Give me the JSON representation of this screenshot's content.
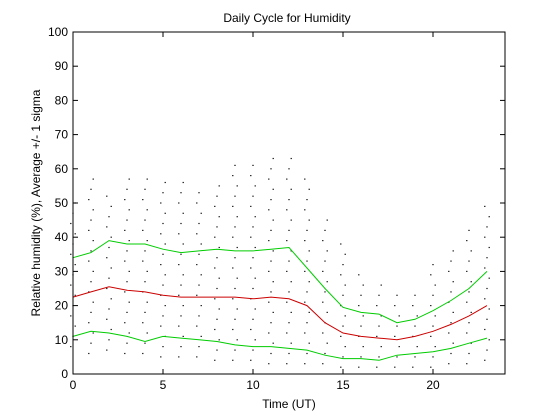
{
  "chart_data": {
    "type": "line",
    "title": "Daily Cycle for Humidity",
    "xlabel": "Time (UT)",
    "ylabel": "Relative humidity (%), Average +/- 1 sigma",
    "xlim": [
      0,
      24
    ],
    "ylim": [
      0,
      100
    ],
    "xticks": [
      0,
      5,
      10,
      15,
      20
    ],
    "yticks": [
      0,
      10,
      20,
      30,
      40,
      50,
      60,
      70,
      80,
      90,
      100
    ],
    "grid": false,
    "colors": {
      "average": "#cc0000",
      "sigma": "#00cc00",
      "points": "#000000",
      "axes": "#000000"
    },
    "x": [
      0,
      1,
      2,
      3,
      4,
      5,
      6,
      7,
      8,
      9,
      10,
      11,
      12,
      13,
      14,
      15,
      16,
      17,
      18,
      19,
      20,
      21,
      22,
      23
    ],
    "series": [
      {
        "role": "average",
        "values": [
          22.5,
          24,
          25.5,
          24.5,
          24,
          23,
          22.5,
          22.5,
          22.5,
          22.5,
          22,
          22.5,
          22,
          20,
          15,
          12,
          11,
          10.5,
          10,
          11,
          12.5,
          14.5,
          17,
          20
        ]
      },
      {
        "role": "upper",
        "values": [
          34,
          35.5,
          39,
          38,
          38,
          36.5,
          35.5,
          36,
          36.5,
          36,
          36,
          36.5,
          37,
          31,
          25,
          19.5,
          18,
          17.5,
          15,
          16,
          18.5,
          21.5,
          25,
          30
        ]
      },
      {
        "role": "lower",
        "values": [
          11,
          12.5,
          12,
          11,
          9.5,
          11,
          10.5,
          10,
          9.5,
          8.5,
          8,
          8,
          7.5,
          7,
          5.5,
          4.5,
          4.5,
          4,
          5.5,
          6,
          6.5,
          7.5,
          9,
          10.5
        ]
      }
    ],
    "scatter_ranges": [
      {
        "x": 0,
        "min": 8,
        "max": 50,
        "step": 3
      },
      {
        "x": 1,
        "min": 6,
        "max": 57,
        "step": 3
      },
      {
        "x": 2,
        "min": 7,
        "max": 53,
        "step": 3
      },
      {
        "x": 3,
        "min": 6,
        "max": 57,
        "step": 3
      },
      {
        "x": 4,
        "min": 6,
        "max": 58,
        "step": 3
      },
      {
        "x": 5,
        "min": 5,
        "max": 56,
        "step": 3
      },
      {
        "x": 6,
        "min": 5,
        "max": 57,
        "step": 3
      },
      {
        "x": 7,
        "min": 5,
        "max": 53,
        "step": 3
      },
      {
        "x": 8,
        "min": 4,
        "max": 56,
        "step": 3
      },
      {
        "x": 9,
        "min": 4,
        "max": 61,
        "step": 3
      },
      {
        "x": 10,
        "min": 4,
        "max": 63,
        "step": 3
      },
      {
        "x": 11,
        "min": 3,
        "max": 64,
        "step": 3
      },
      {
        "x": 12,
        "min": 3,
        "max": 65,
        "step": 3
      },
      {
        "x": 13,
        "min": 3,
        "max": 57,
        "step": 3
      },
      {
        "x": 14,
        "min": 3,
        "max": 46,
        "step": 3
      },
      {
        "x": 15,
        "min": 2,
        "max": 40,
        "step": 3
      },
      {
        "x": 16,
        "min": 2,
        "max": 31,
        "step": 3
      },
      {
        "x": 17,
        "min": 2,
        "max": 26,
        "step": 3
      },
      {
        "x": 18,
        "min": 2,
        "max": 24,
        "step": 3
      },
      {
        "x": 19,
        "min": 2,
        "max": 24,
        "step": 3
      },
      {
        "x": 20,
        "min": 2,
        "max": 32,
        "step": 3
      },
      {
        "x": 21,
        "min": 3,
        "max": 37,
        "step": 3
      },
      {
        "x": 22,
        "min": 3,
        "max": 42,
        "step": 3
      },
      {
        "x": 23,
        "min": 4,
        "max": 50,
        "step": 3
      }
    ]
  }
}
